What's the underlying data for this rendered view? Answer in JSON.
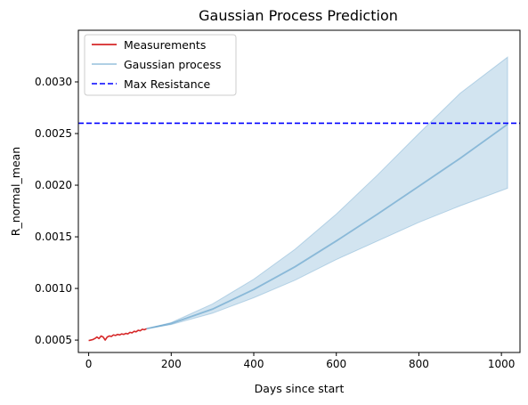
{
  "chart_data": {
    "type": "line",
    "title": "Gaussian Process Prediction",
    "xlabel": "Days since start",
    "ylabel": "R_normal_mean",
    "xlim": [
      -25,
      1045
    ],
    "ylim": [
      0.00038,
      0.0035
    ],
    "xticks": [
      0,
      200,
      400,
      600,
      800,
      1000
    ],
    "xtick_labels": [
      "0",
      "200",
      "400",
      "600",
      "800",
      "1000"
    ],
    "yticks": [
      0.0005,
      0.001,
      0.0015,
      0.002,
      0.0025,
      0.003
    ],
    "ytick_labels": [
      "0.0005",
      "0.0010",
      "0.0015",
      "0.0020",
      "0.0025",
      "0.0030"
    ],
    "grid": false,
    "legend_position": "upper-left",
    "legend": [
      "Measurements",
      "Gaussian process",
      "Max Resistance"
    ],
    "series": [
      {
        "name": "Measurements",
        "style": "solid",
        "color": "#d62728",
        "x": [
          0,
          5,
          10,
          15,
          20,
          25,
          30,
          35,
          40,
          45,
          50,
          55,
          60,
          65,
          70,
          75,
          80,
          85,
          90,
          95,
          100,
          105,
          110,
          115,
          120,
          125,
          130,
          135,
          140
        ],
        "y": [
          0.000495,
          0.0005,
          0.000505,
          0.000515,
          0.00053,
          0.000515,
          0.00054,
          0.00053,
          0.0005,
          0.00053,
          0.00054,
          0.000535,
          0.00055,
          0.000545,
          0.000555,
          0.00055,
          0.00056,
          0.000555,
          0.000565,
          0.00056,
          0.000575,
          0.00057,
          0.000585,
          0.00058,
          0.000595,
          0.00059,
          0.000605,
          0.0006,
          0.00061
        ]
      },
      {
        "name": "Gaussian process",
        "style": "solid",
        "color": "#1f77b4",
        "x": [
          140,
          200,
          300,
          400,
          500,
          600,
          700,
          800,
          900,
          1015
        ],
        "y": [
          0.00061,
          0.00066,
          0.0008,
          0.00099,
          0.00121,
          0.00146,
          0.00172,
          0.00199,
          0.00226,
          0.00259
        ],
        "band_lower": [
          0.00061,
          0.00065,
          0.00076,
          0.00091,
          0.00108,
          0.00128,
          0.00146,
          0.00164,
          0.0018,
          0.00197
        ],
        "band_upper": [
          0.00061,
          0.00067,
          0.00085,
          0.00109,
          0.00138,
          0.00172,
          0.0021,
          0.0025,
          0.00289,
          0.00324
        ]
      },
      {
        "name": "Max Resistance",
        "style": "dashed",
        "color": "#0000ff",
        "y": 0.0026
      }
    ]
  },
  "colors": {
    "measurements": "#d62728",
    "gaussian_line": "#1f77b4",
    "band_fill": "#1f77b4",
    "max_resistance": "#0000ff"
  }
}
